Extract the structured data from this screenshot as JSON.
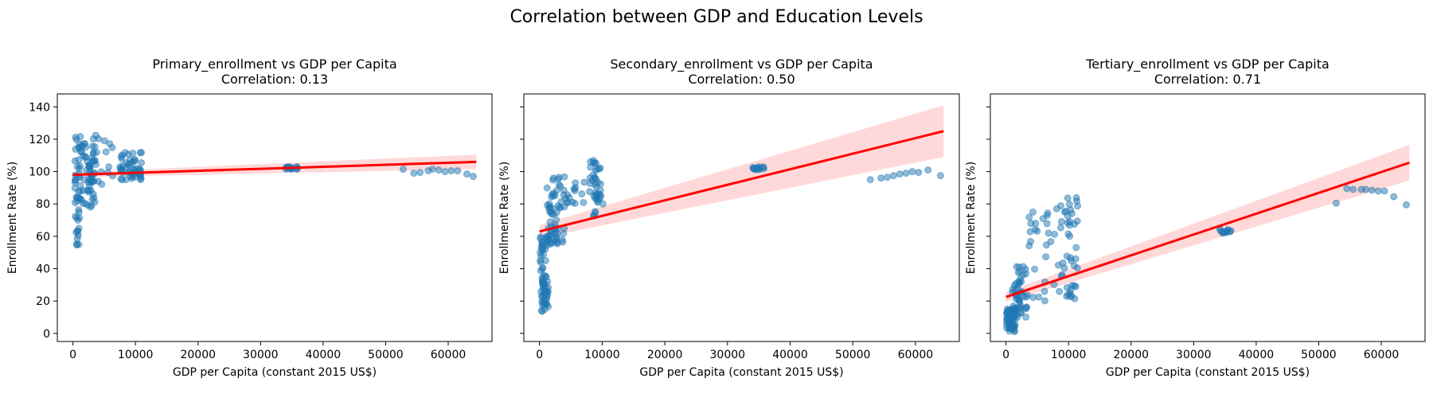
{
  "figure": {
    "suptitle": "Correlation between GDP and Education Levels",
    "x_label": "GDP per Capita (constant 2015 US$)",
    "y_label": "Enrollment Rate (%)",
    "colors": {
      "points": "#1f77b4",
      "fit": "#ff0000"
    }
  },
  "chart_data": [
    {
      "type": "scatter",
      "title": "Primary_enrollment vs GDP per Capita",
      "subtitle": "Correlation: 0.13",
      "xlabel": "GDP per Capita (constant 2015 US$)",
      "ylabel": "Enrollment Rate (%)",
      "xlim": [
        -2500,
        67000
      ],
      "ylim": [
        -5,
        148
      ],
      "xticks": [
        0,
        10000,
        20000,
        30000,
        40000,
        50000,
        60000
      ],
      "yticks": [
        0,
        20,
        40,
        60,
        80,
        100,
        120,
        140
      ],
      "show_ytick_labels": true,
      "fit": {
        "x": [
          0,
          64500
        ],
        "y": [
          98,
          106
        ],
        "ci_halfwidth_start": 1.5,
        "ci_halfwidth_end": 4.5
      },
      "clusters": [
        {
          "x": [
            300,
            1200
          ],
          "y": [
            50,
            122
          ],
          "n": 40
        },
        {
          "x": [
            1000,
            3500
          ],
          "y": [
            78,
            118
          ],
          "n": 60
        },
        {
          "x": [
            3000,
            6500
          ],
          "y": [
            92,
            126
          ],
          "n": 18
        },
        {
          "x": [
            7500,
            11000
          ],
          "y": [
            95,
            112
          ],
          "n": 50
        },
        {
          "x": [
            34000,
            36000
          ],
          "y": [
            101.5,
            103
          ],
          "n": 14
        }
      ],
      "points": [
        [
          52800,
          101.5
        ],
        [
          54500,
          99
        ],
        [
          55500,
          99.5
        ],
        [
          56800,
          100.5
        ],
        [
          57500,
          101.5
        ],
        [
          58500,
          101
        ],
        [
          59500,
          100
        ],
        [
          60500,
          100.5
        ],
        [
          61500,
          100.5
        ],
        [
          63000,
          98.5
        ],
        [
          64000,
          97
        ]
      ]
    },
    {
      "type": "scatter",
      "title": "Secondary_enrollment vs GDP per Capita",
      "subtitle": "Correlation: 0.50",
      "xlabel": "GDP per Capita (constant 2015 US$)",
      "ylabel": "Enrollment Rate (%)",
      "xlim": [
        -2500,
        67000
      ],
      "ylim": [
        -5,
        148
      ],
      "xticks": [
        0,
        10000,
        20000,
        30000,
        40000,
        50000,
        60000
      ],
      "yticks": [
        0,
        20,
        40,
        60,
        80,
        100,
        120,
        140
      ],
      "show_ytick_labels": false,
      "fit": {
        "x": [
          0,
          64500
        ],
        "y": [
          63,
          125
        ],
        "ci_halfwidth_start": 4,
        "ci_halfwidth_end": 16
      },
      "clusters": [
        {
          "x": [
            100,
            1500
          ],
          "y": [
            13,
            60
          ],
          "n": 70
        },
        {
          "x": [
            1200,
            4000
          ],
          "y": [
            55,
            100
          ],
          "n": 60
        },
        {
          "x": [
            4000,
            8000
          ],
          "y": [
            80,
            95
          ],
          "n": 15
        },
        {
          "x": [
            8000,
            10200
          ],
          "y": [
            70,
            107
          ],
          "n": 40
        },
        {
          "x": [
            34000,
            36000
          ],
          "y": [
            101,
            103
          ],
          "n": 14
        }
      ],
      "points": [
        [
          52800,
          95
        ],
        [
          54500,
          96
        ],
        [
          55500,
          96.5
        ],
        [
          56500,
          97.5
        ],
        [
          57500,
          98.5
        ],
        [
          58500,
          99
        ],
        [
          59500,
          100
        ],
        [
          60500,
          99.5
        ],
        [
          62000,
          101
        ],
        [
          64000,
          97.5
        ]
      ]
    },
    {
      "type": "scatter",
      "title": "Tertiary_enrollment vs GDP per Capita",
      "subtitle": "Correlation: 0.71",
      "xlabel": "GDP per Capita (constant 2015 US$)",
      "ylabel": "Enrollment Rate (%)",
      "xlim": [
        -2500,
        67000
      ],
      "ylim": [
        -5,
        148
      ],
      "xticks": [
        0,
        10000,
        20000,
        30000,
        40000,
        50000,
        60000
      ],
      "yticks": [
        0,
        20,
        40,
        60,
        80,
        100,
        120,
        140
      ],
      "show_ytick_labels": false,
      "fit": {
        "x": [
          0,
          64500
        ],
        "y": [
          22.5,
          105.5
        ],
        "ci_halfwidth_start": 3,
        "ci_halfwidth_end": 11
      },
      "clusters": [
        {
          "x": [
            100,
            1500
          ],
          "y": [
            1,
            15
          ],
          "n": 60
        },
        {
          "x": [
            1000,
            3500
          ],
          "y": [
            10,
            42
          ],
          "n": 50
        },
        {
          "x": [
            3500,
            8000
          ],
          "y": [
            20,
            75
          ],
          "n": 25
        },
        {
          "x": [
            8000,
            11500
          ],
          "y": [
            20,
            85
          ],
          "n": 45
        },
        {
          "x": [
            34000,
            36000
          ],
          "y": [
            62,
            65
          ],
          "n": 12
        }
      ],
      "points": [
        [
          52800,
          80.5
        ],
        [
          54500,
          89.5
        ],
        [
          55500,
          89
        ],
        [
          56800,
          89
        ],
        [
          57500,
          89
        ],
        [
          58500,
          88.5
        ],
        [
          59500,
          88
        ],
        [
          60500,
          88
        ],
        [
          62000,
          84.5
        ],
        [
          64000,
          79.5
        ]
      ]
    }
  ]
}
